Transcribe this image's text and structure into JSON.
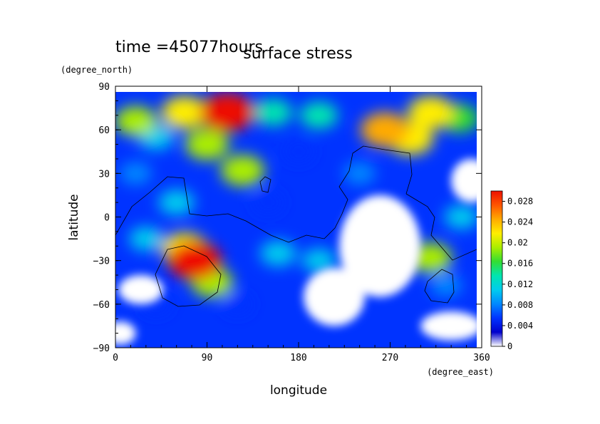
{
  "chart_data": {
    "type": "heatmap",
    "time_label": "time =45077hours",
    "title": "surface stress",
    "xlabel": "longitude",
    "ylabel": "latitude",
    "xunit": "(degree_east)",
    "yunit": "(degree_north)",
    "xlim": [
      0,
      360
    ],
    "ylim": [
      -90,
      90
    ],
    "x_ticks": [
      "0",
      "90",
      "180",
      "270",
      "360"
    ],
    "y_ticks": [
      "90",
      "60",
      "30",
      "0",
      "−30",
      "−60",
      "−90"
    ],
    "colorbar": {
      "min": 0,
      "max": 0.03,
      "labels": [
        "0.028",
        "0.024",
        "0.02",
        "0.016",
        "0.012",
        "0.008",
        "0.004",
        "0"
      ],
      "stops": [
        "#ffffff",
        "#0000cc",
        "#0033ff",
        "#0088ff",
        "#00ccee",
        "#00e5b0",
        "#33dd33",
        "#aaee00",
        "#ffee00",
        "#ffaa00",
        "#ff5500",
        "#ee1100"
      ]
    },
    "features": [
      {
        "lon": 110,
        "lat": 72,
        "value": 0.03
      },
      {
        "lon": 68,
        "lat": 72,
        "value": 0.022
      },
      {
        "lon": 20,
        "lat": 66,
        "value": 0.018
      },
      {
        "lon": 90,
        "lat": 50,
        "value": 0.02
      },
      {
        "lon": 40,
        "lat": 55,
        "value": 0.012
      },
      {
        "lon": 265,
        "lat": 60,
        "value": 0.025
      },
      {
        "lon": 290,
        "lat": 54,
        "value": 0.022
      },
      {
        "lon": 310,
        "lat": 72,
        "value": 0.022
      },
      {
        "lon": 338,
        "lat": 68,
        "value": 0.016
      },
      {
        "lon": 200,
        "lat": 70,
        "value": 0.014
      },
      {
        "lon": 155,
        "lat": 72,
        "value": 0.014
      },
      {
        "lon": 125,
        "lat": 32,
        "value": 0.02
      },
      {
        "lon": 78,
        "lat": -30,
        "value": 0.03
      },
      {
        "lon": 68,
        "lat": -22,
        "value": 0.022
      },
      {
        "lon": 95,
        "lat": -45,
        "value": 0.018
      },
      {
        "lon": 60,
        "lat": 10,
        "value": 0.012
      },
      {
        "lon": 30,
        "lat": -15,
        "value": 0.01
      },
      {
        "lon": 160,
        "lat": -25,
        "value": 0.012
      },
      {
        "lon": 200,
        "lat": -30,
        "value": 0.01
      },
      {
        "lon": 310,
        "lat": -28,
        "value": 0.018
      },
      {
        "lon": 325,
        "lat": -47,
        "value": 0.008
      },
      {
        "lon": 340,
        "lat": 0,
        "value": 0.01
      },
      {
        "lon": 240,
        "lat": 30,
        "value": 0.008
      },
      {
        "lon": 150,
        "lat": 10,
        "value": 0.006
      },
      {
        "lon": 20,
        "lat": 30,
        "value": 0.008
      },
      {
        "lon": 250,
        "lat": -20,
        "value": 0.006
      },
      {
        "lon": 180,
        "lat": 45,
        "value": 0.006
      },
      {
        "lon": 120,
        "lat": -60,
        "value": 0.005
      },
      {
        "lon": 40,
        "lat": -60,
        "value": 0.006
      }
    ],
    "low_regions": [
      {
        "lon": 260,
        "lat": -20,
        "rx": 40,
        "ry": 35
      },
      {
        "lon": 215,
        "lat": -55,
        "rx": 30,
        "ry": 20
      },
      {
        "lon": 350,
        "lat": 25,
        "rx": 20,
        "ry": 15
      },
      {
        "lon": 25,
        "lat": -50,
        "rx": 22,
        "ry": 10
      },
      {
        "lon": 330,
        "lat": -75,
        "rx": 30,
        "ry": 10
      },
      {
        "lon": 5,
        "lat": -80,
        "rx": 15,
        "ry": 8
      }
    ]
  }
}
